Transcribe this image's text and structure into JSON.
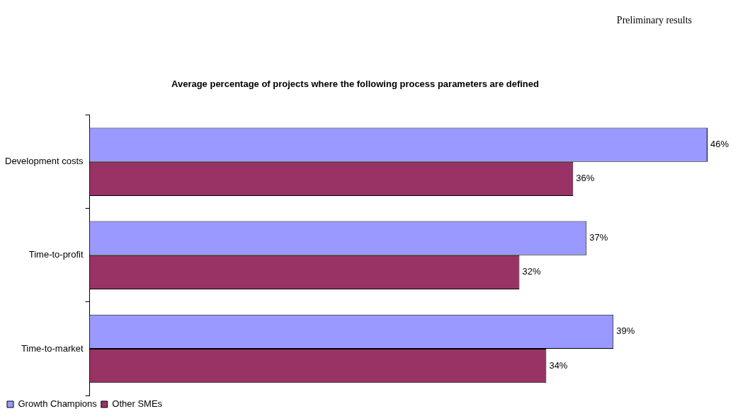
{
  "chart_data": {
    "type": "bar",
    "orientation": "horizontal",
    "title": "Average percentage of projects where the following process parameters are defined",
    "annotations": [
      "Preliminary results"
    ],
    "categories": [
      "Development costs",
      "Time-to-profit",
      "Time-to-market"
    ],
    "series": [
      {
        "name": "Growth Champions",
        "color": "#9999ff",
        "values": [
          46,
          37,
          39
        ],
        "value_labels": [
          "46%",
          "37%",
          "39%"
        ]
      },
      {
        "name": "Other SMEs",
        "color": "#993366",
        "values": [
          36,
          32,
          34
        ],
        "value_labels": [
          "36%",
          "32%",
          "34%"
        ]
      }
    ],
    "grid": false,
    "legend": "bottom left"
  }
}
